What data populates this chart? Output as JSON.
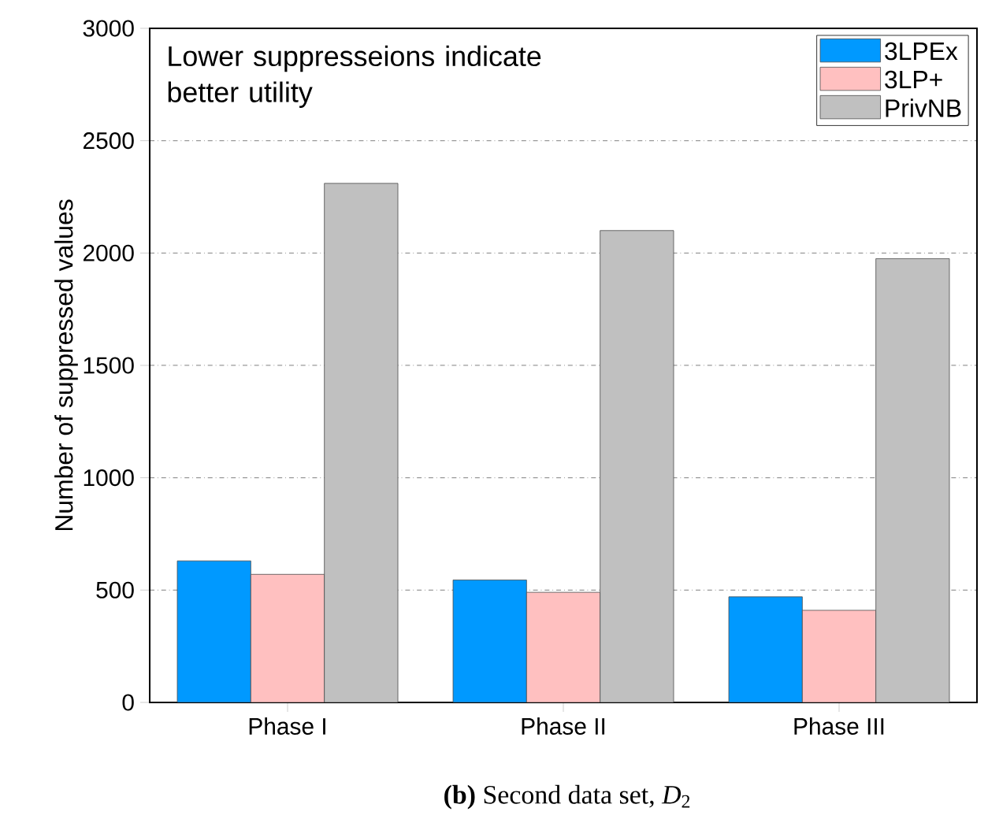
{
  "chart_data": {
    "type": "bar",
    "ylabel": "Number of suppressed values",
    "categories": [
      "Phase I",
      "Phase II",
      "Phase III"
    ],
    "series": [
      {
        "name": "3LPEx",
        "color": "#0099ff",
        "values": [
          630,
          545,
          470
        ]
      },
      {
        "name": "3LP+",
        "color": "#ffc0c0",
        "values": [
          570,
          490,
          410
        ]
      },
      {
        "name": "PrivNB",
        "color": "#c0c0c0",
        "values": [
          2310,
          2100,
          1975
        ]
      }
    ],
    "ylim": [
      0,
      3000
    ],
    "yticks": [
      0,
      500,
      1000,
      1500,
      2000,
      2500,
      3000
    ],
    "grid": "y",
    "legend": "top right",
    "annotations": [
      "Lower suppresseions indicate better utility",
      "**(b)** Second data set, *D*$_{2}$"
    ]
  }
}
